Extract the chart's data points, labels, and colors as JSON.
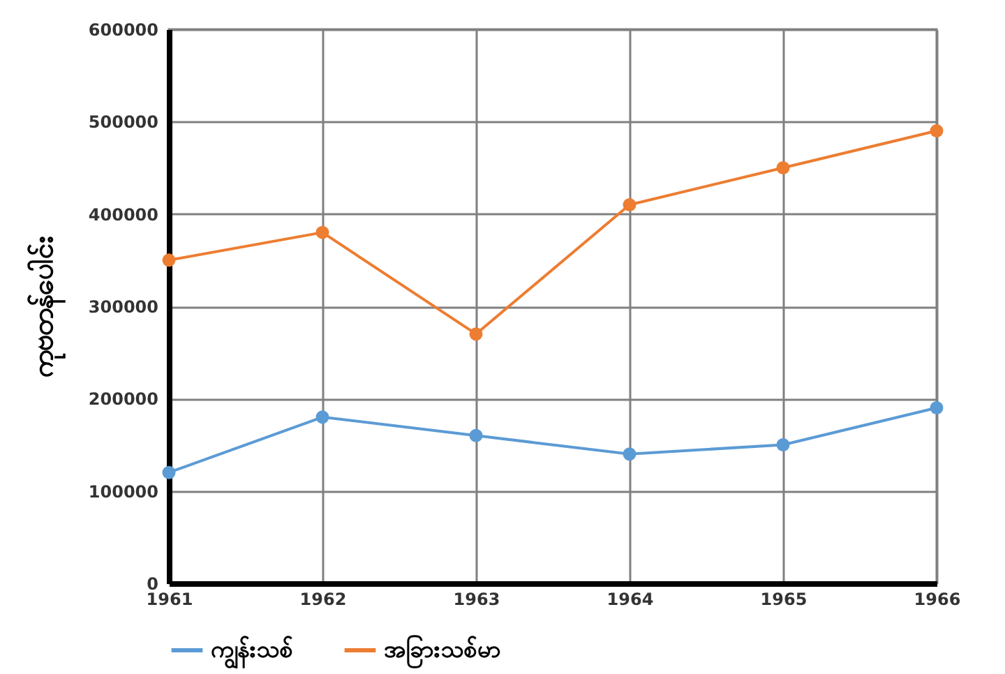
{
  "chart_data": {
    "type": "line",
    "ylabel": "ကုဗတန်ပေါင်း",
    "categories": [
      "1961",
      "1962",
      "1963",
      "1964",
      "1965",
      "1966"
    ],
    "series": [
      {
        "name": "ကျွန်းသစ်",
        "color": "#5b9bd5",
        "values": [
          120000,
          180000,
          160000,
          140000,
          150000,
          190000
        ]
      },
      {
        "name": "အခြားသစ်မာ",
        "color": "#ed7d31",
        "values": [
          350000,
          380000,
          270000,
          410000,
          450000,
          490000
        ]
      }
    ],
    "ylim": [
      0,
      600000
    ],
    "yticks": [
      0,
      100000,
      200000,
      300000,
      400000,
      500000,
      600000
    ],
    "grid": true,
    "legend": "bottom",
    "marker": "circle",
    "line_style": "solid"
  }
}
